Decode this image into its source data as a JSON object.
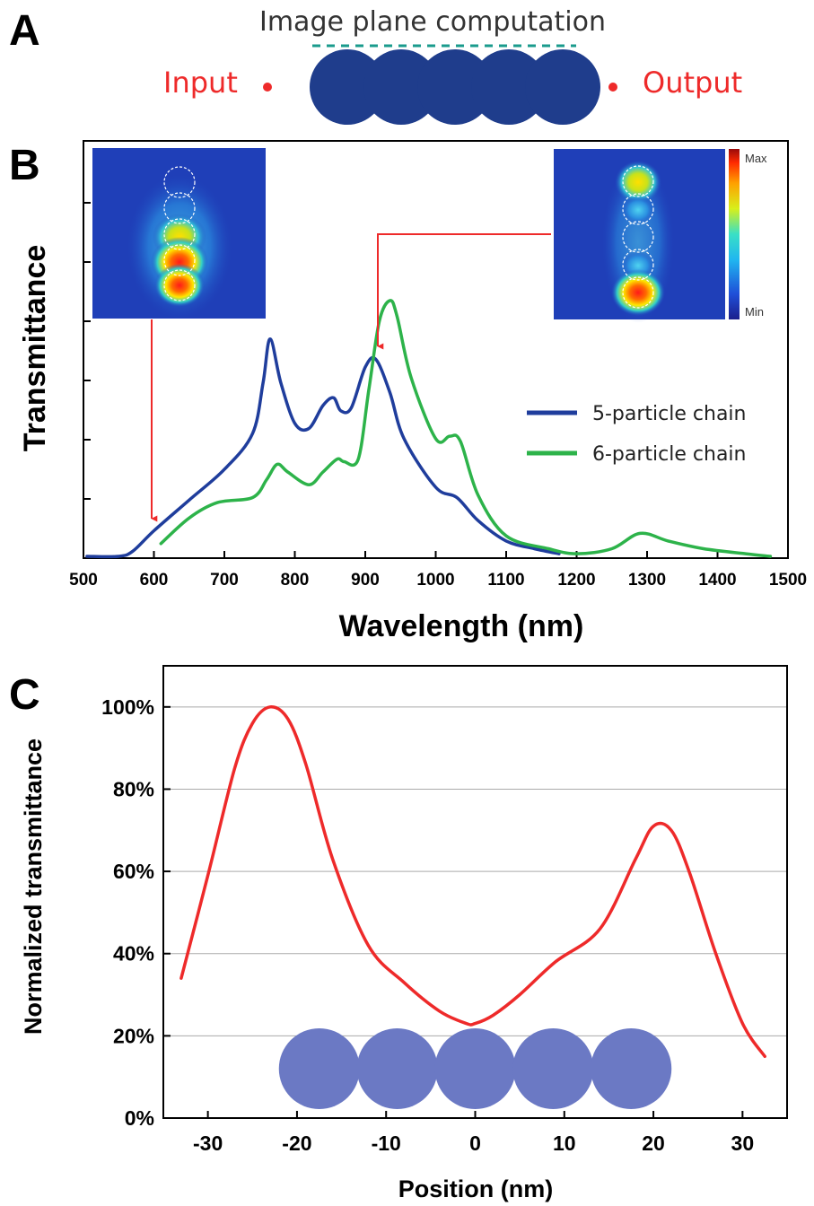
{
  "panel_a": {
    "letter": "A",
    "title": "Image plane computation",
    "input_label": "Input",
    "output_label": "Output",
    "particle_count": 5,
    "particle_color": "#1f3d8c",
    "accent_color": "#ee2a2a",
    "dash_color": "#1a9b8c"
  },
  "panel_b": {
    "letter": "B",
    "colorbar_max": "Max",
    "colorbar_min": "Min"
  },
  "panel_c": {
    "letter": "C"
  },
  "chart_data": [
    {
      "type": "line",
      "xlabel": "Wavelength (nm)",
      "ylabel": "Transmittance",
      "xlim": [
        500,
        1500
      ],
      "xticks": [
        500,
        600,
        700,
        800,
        900,
        1000,
        1100,
        1200,
        1300,
        1400,
        1500
      ],
      "ylim": [
        0,
        1
      ],
      "yticks_labeled": false,
      "legend_position": "right",
      "series": [
        {
          "name": "5-particle chain",
          "color": "#1f3d9c",
          "x": [
            505,
            550,
            570,
            600,
            650,
            700,
            740,
            755,
            765,
            780,
            800,
            820,
            840,
            855,
            865,
            880,
            900,
            915,
            935,
            955,
            1000,
            1030,
            1060,
            1100,
            1140,
            1175
          ],
          "y": [
            0.0,
            0.0,
            0.02,
            0.1,
            0.22,
            0.34,
            0.48,
            0.68,
            0.85,
            0.68,
            0.52,
            0.5,
            0.59,
            0.62,
            0.57,
            0.58,
            0.74,
            0.77,
            0.64,
            0.46,
            0.27,
            0.23,
            0.14,
            0.06,
            0.03,
            0.01
          ]
        },
        {
          "name": "6-particle chain",
          "color": "#2db34a",
          "x": [
            610,
            650,
            690,
            740,
            760,
            775,
            790,
            820,
            840,
            860,
            870,
            890,
            905,
            920,
            935,
            945,
            965,
            1000,
            1020,
            1035,
            1060,
            1100,
            1160,
            1200,
            1250,
            1290,
            1330,
            1380,
            1440,
            1475
          ],
          "y": [
            0.05,
            0.15,
            0.21,
            0.23,
            0.3,
            0.36,
            0.33,
            0.28,
            0.33,
            0.38,
            0.37,
            0.38,
            0.65,
            0.92,
            1.0,
            0.94,
            0.7,
            0.46,
            0.47,
            0.45,
            0.24,
            0.08,
            0.03,
            0.01,
            0.03,
            0.09,
            0.06,
            0.03,
            0.01,
            0.0
          ]
        }
      ],
      "annotations": [
        {
          "type": "arrow",
          "from_inset": "left",
          "to_x": 600
        },
        {
          "type": "arrow",
          "from_inset": "right",
          "to_x": 920
        }
      ]
    },
    {
      "type": "line",
      "xlabel": "Position (nm)",
      "ylabel": "Normalized transmittance",
      "xlim": [
        -35,
        35
      ],
      "xticks": [
        -30,
        -20,
        -10,
        0,
        10,
        20,
        30
      ],
      "ylim": [
        0,
        110
      ],
      "yticks": [
        0,
        20,
        40,
        60,
        80,
        100
      ],
      "ytick_labels": [
        "0%",
        "20%",
        "40%",
        "60%",
        "80%",
        "100%"
      ],
      "grid": "horizontal",
      "series": [
        {
          "color": "#ee2a2a",
          "x": [
            -33,
            -30,
            -27,
            -25,
            -23,
            -21,
            -19,
            -16,
            -12,
            -8,
            -4,
            -1,
            0,
            2,
            5,
            9,
            14,
            18,
            20,
            22,
            24,
            27,
            30,
            32.5
          ],
          "y": [
            34,
            59,
            85,
            96,
            100,
            97,
            86,
            63,
            42,
            33,
            26,
            23,
            23,
            25,
            30,
            38,
            46,
            63,
            71,
            70,
            60,
            40,
            23,
            15
          ]
        }
      ],
      "overlay": {
        "particle_count": 5,
        "particle_color": "#6b79c4"
      }
    }
  ]
}
